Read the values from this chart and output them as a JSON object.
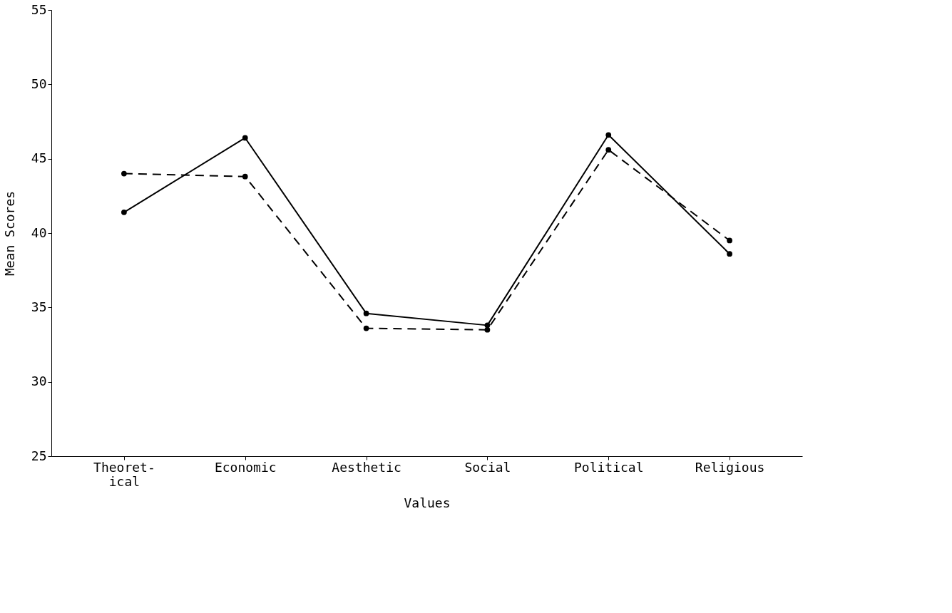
{
  "chart_data": {
    "type": "line",
    "xlabel": "Values",
    "ylabel": "Mean Scores",
    "categories": [
      "Theoret-\nical",
      "Economic",
      "Aesthetic",
      "Social",
      "Political",
      "Religious"
    ],
    "series": [
      {
        "color": "#000000",
        "line_style": "solid",
        "values": [
          41.4,
          46.4,
          34.6,
          33.8,
          46.6,
          38.6
        ]
      },
      {
        "color": "#000000",
        "line_style": "dashed",
        "values": [
          44.0,
          43.8,
          33.6,
          33.5,
          45.6,
          39.5
        ]
      }
    ],
    "ylim": [
      25,
      55
    ],
    "yticks": [
      25,
      30,
      35,
      40,
      45,
      50,
      55
    ],
    "grid": false,
    "marker": "circle"
  }
}
